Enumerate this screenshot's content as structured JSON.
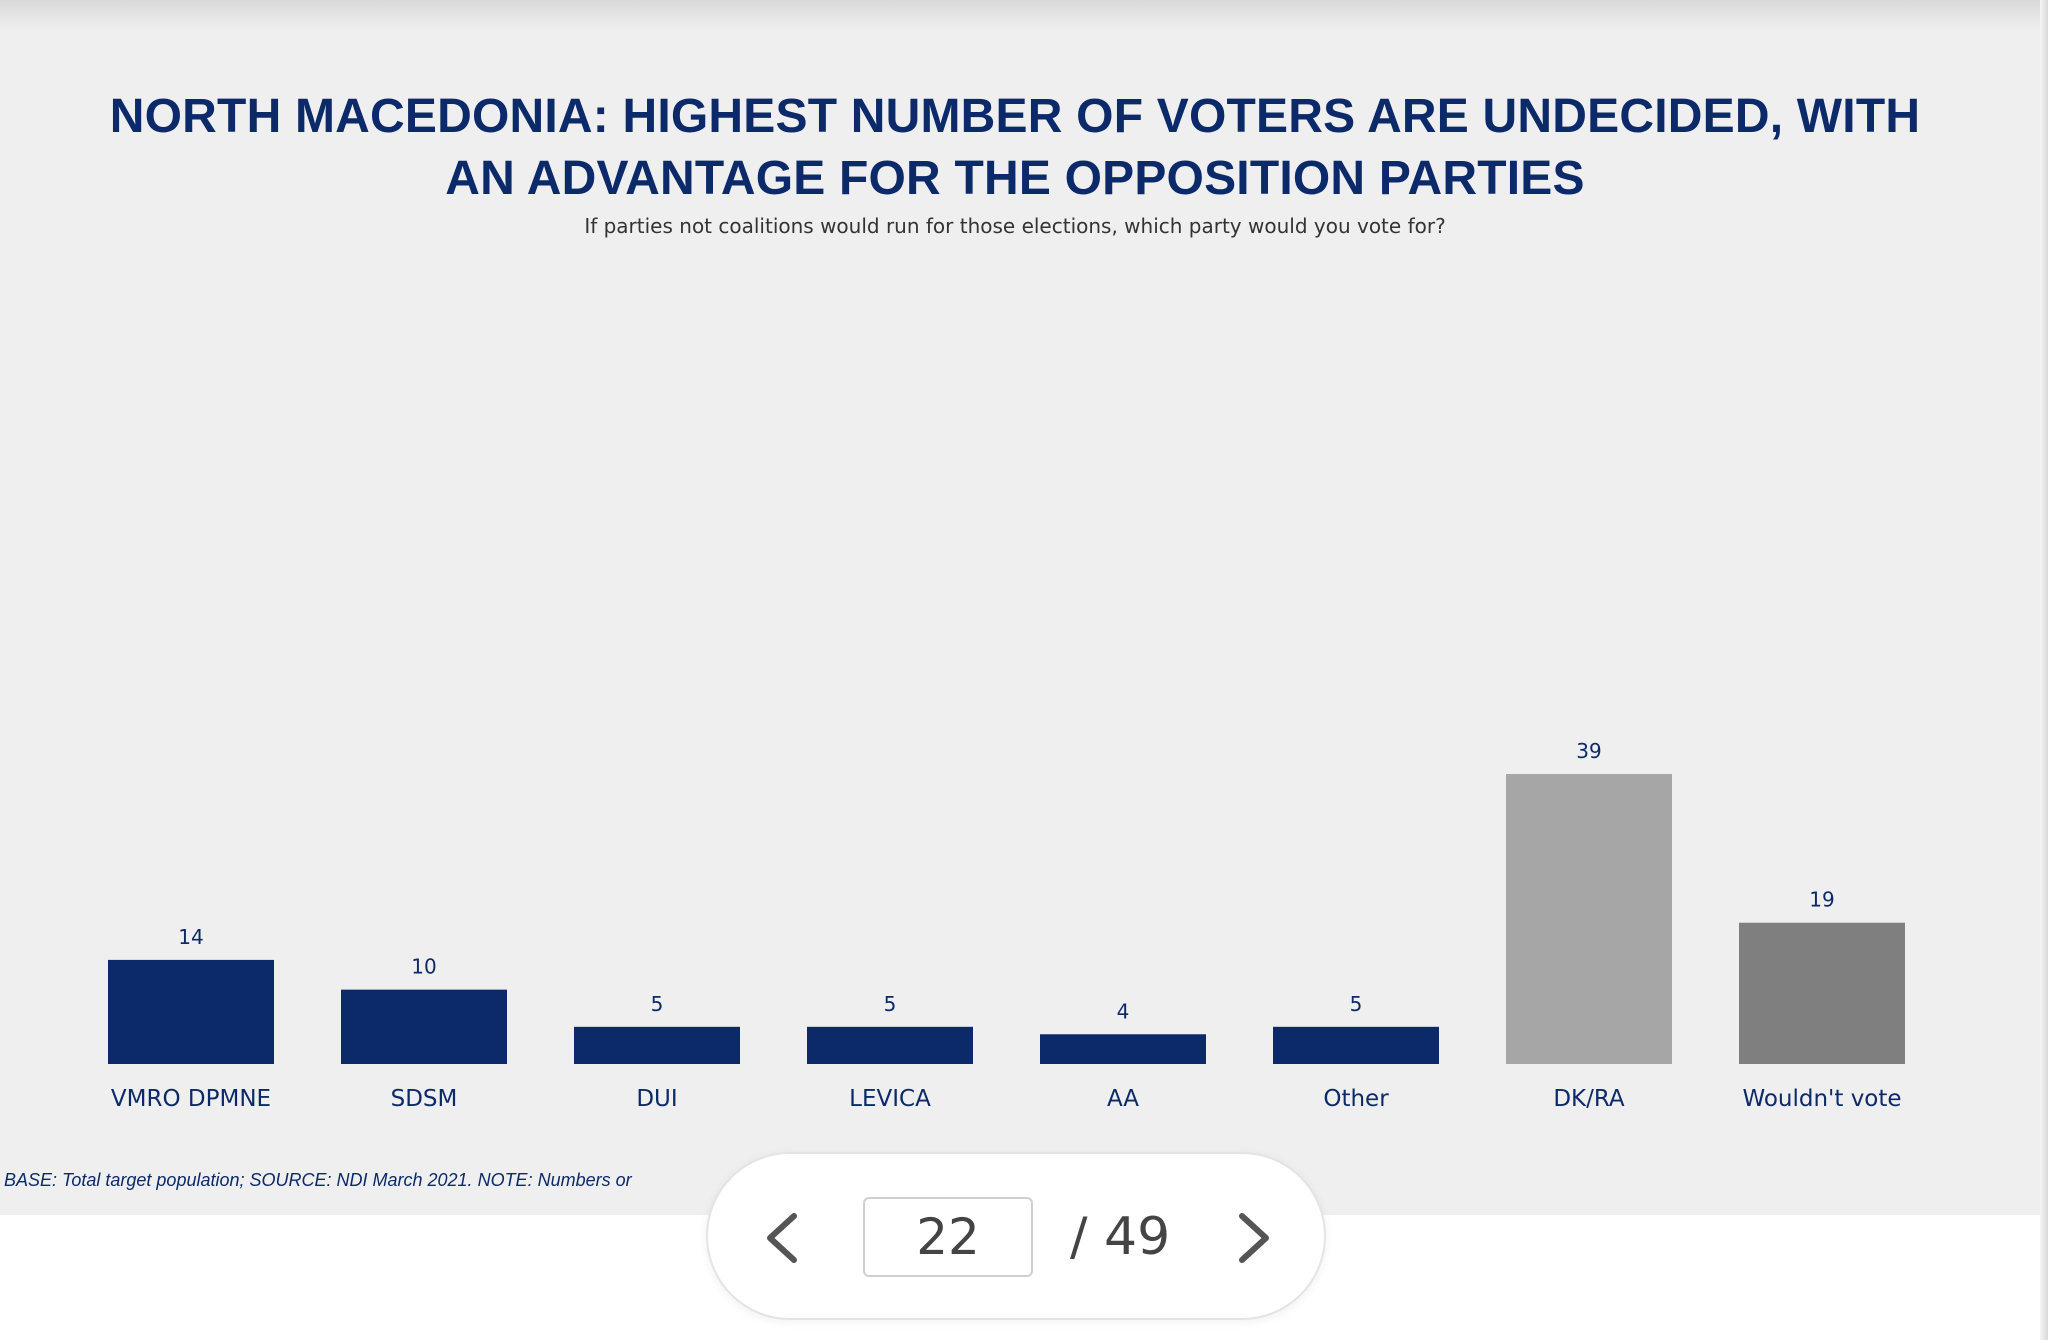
{
  "title_line1": "NORTH MACEDONIA: HIGHEST NUMBER OF VOTERS ARE UNDECIDED, WITH",
  "title_line2": "AN ADVANTAGE FOR THE OPPOSITION PARTIES",
  "subtitle": "If parties not coalitions would run for those elections, which party would you vote for?",
  "footnote": "BASE: Total target population; SOURCE: NDI March 2021. NOTE: Numbers or",
  "colors": {
    "navy": "#0c2a69",
    "light_gray": "#a6a6a6",
    "dark_gray": "#7f7f7f"
  },
  "pager": {
    "current_page": "22",
    "total_label": "/ 49",
    "prev_icon": "chevron-left-icon",
    "next_icon": "chevron-right-icon"
  },
  "chart_data": {
    "type": "bar",
    "title": "NORTH MACEDONIA: HIGHEST NUMBER OF VOTERS ARE UNDECIDED, WITH AN ADVANTAGE FOR THE OPPOSITION PARTIES",
    "subtitle": "If parties not coalitions would run for those elections, which party would you vote for?",
    "categories": [
      "VMRO DPMNE",
      "SDSM",
      "DUI",
      "LEVICA",
      "AA",
      "Other",
      "DK/RA",
      "Wouldn't vote"
    ],
    "values": [
      14,
      10,
      5,
      5,
      4,
      5,
      39,
      19
    ],
    "labels": [
      "14",
      "10",
      "5",
      "5",
      "4",
      "5",
      "39",
      "19"
    ],
    "bar_colors": [
      "#0c2a69",
      "#0c2a69",
      "#0c2a69",
      "#0c2a69",
      "#0c2a69",
      "#0c2a69",
      "#a6a6a6",
      "#7f7f7f"
    ],
    "xlabel": "",
    "ylabel": "",
    "ylim": [
      0,
      39
    ],
    "grid": false,
    "legend": "none"
  }
}
